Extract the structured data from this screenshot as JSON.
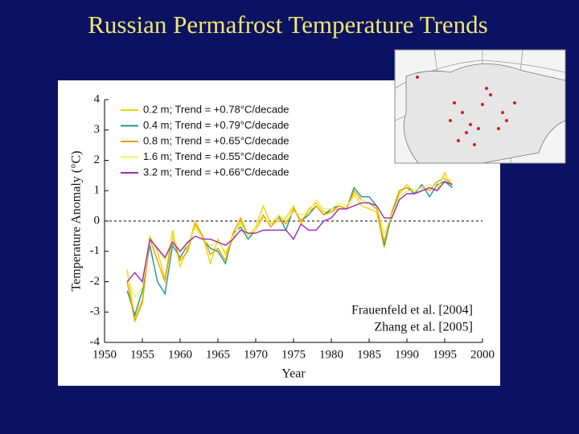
{
  "chart_data": {
    "type": "line",
    "title": "Russian Permafrost Temperature Trends",
    "x_label": "Year",
    "y_label": "Temperature Anomaly (°C)",
    "annotations": [
      "Frauenfeld et al. [2004]",
      "Zhang et al. [2005]"
    ],
    "x": [
      1953,
      1954,
      1955,
      1956,
      1957,
      1958,
      1959,
      1960,
      1961,
      1962,
      1963,
      1964,
      1965,
      1966,
      1967,
      1968,
      1969,
      1970,
      1971,
      1972,
      1973,
      1974,
      1975,
      1976,
      1977,
      1978,
      1979,
      1980,
      1981,
      1982,
      1983,
      1984,
      1985,
      1986,
      1987,
      1988,
      1989,
      1990,
      1991,
      1992,
      1993,
      1994,
      1995,
      1996
    ],
    "series": [
      {
        "name": "0.2 m; Trend = +0.78°C/decade",
        "color": "#e8d800",
        "values": [
          -1.6,
          -3.2,
          -2.6,
          -0.5,
          -1.0,
          -1.9,
          -0.3,
          -1.5,
          -0.9,
          0.0,
          -0.5,
          -1.4,
          -0.6,
          -1.1,
          -0.6,
          0.0,
          -0.5,
          -0.2,
          0.5,
          -0.1,
          0.0,
          0.1,
          0.5,
          -0.1,
          0.4,
          0.6,
          0.3,
          0.3,
          0.4,
          0.4,
          0.9,
          0.5,
          0.4,
          0.3,
          -0.9,
          0.3,
          0.9,
          1.2,
          0.9,
          1.0,
          1.1,
          1.0,
          1.6,
          1.1
        ]
      },
      {
        "name": "0.4 m; Trend = +0.79°C/decade",
        "color": "#1a9a8a",
        "values": [
          -2.3,
          -3.1,
          -2.3,
          -0.8,
          -2.0,
          -2.4,
          -0.8,
          -1.2,
          -0.8,
          -0.2,
          -0.6,
          -0.9,
          -1.0,
          -1.4,
          -0.4,
          -0.2,
          -0.6,
          -0.3,
          0.1,
          -0.1,
          0.2,
          -0.3,
          0.4,
          0.0,
          0.2,
          0.5,
          0.2,
          0.4,
          0.5,
          0.4,
          1.1,
          0.8,
          0.8,
          0.5,
          -0.8,
          0.2,
          1.0,
          1.1,
          0.9,
          1.2,
          0.8,
          1.2,
          1.3,
          1.1
        ]
      },
      {
        "name": "0.8 m; Trend = +0.65°C/decade",
        "color": "#f0a000",
        "values": [
          -2.0,
          -3.3,
          -2.7,
          -0.6,
          -1.3,
          -2.0,
          -0.5,
          -1.3,
          -1.0,
          -0.1,
          -0.5,
          -1.1,
          -0.9,
          -1.3,
          -0.4,
          0.1,
          -0.5,
          -0.3,
          0.2,
          -0.2,
          0.1,
          -0.1,
          0.4,
          0.0,
          0.3,
          0.5,
          0.2,
          0.3,
          0.5,
          0.4,
          1.0,
          0.7,
          0.6,
          0.4,
          -0.7,
          0.3,
          1.0,
          1.1,
          1.0,
          1.1,
          1.0,
          1.3,
          1.4,
          1.2
        ]
      },
      {
        "name": "1.6 m; Trend = +0.55°C/decade",
        "color": "#f6ee60",
        "values": [
          -1.8,
          -2.5,
          -2.2,
          -0.6,
          -0.9,
          -1.3,
          -0.5,
          -1.0,
          -0.8,
          -0.2,
          -0.6,
          -0.8,
          -0.7,
          -1.0,
          -0.5,
          -0.1,
          -0.5,
          -0.3,
          0.1,
          -0.1,
          0.2,
          0.0,
          0.3,
          0.2,
          0.3,
          0.7,
          0.4,
          0.4,
          0.6,
          0.5,
          0.8,
          0.7,
          0.6,
          0.5,
          -0.4,
          0.2,
          0.8,
          1.0,
          1.0,
          1.1,
          1.2,
          1.1,
          1.5,
          1.3
        ]
      },
      {
        "name": "3.2 m; Trend = +0.66°C/decade",
        "color": "#9a2ab8",
        "values": [
          -2.0,
          -1.7,
          -2.0,
          -0.6,
          -0.9,
          -1.2,
          -0.7,
          -1.0,
          -0.7,
          -0.5,
          -0.6,
          -0.6,
          -0.7,
          -0.8,
          -0.6,
          -0.3,
          -0.4,
          -0.4,
          -0.3,
          -0.3,
          -0.3,
          -0.3,
          -0.6,
          -0.1,
          -0.3,
          -0.3,
          0.0,
          0.1,
          0.4,
          0.4,
          0.5,
          0.6,
          0.6,
          0.5,
          0.1,
          0.1,
          0.7,
          0.9,
          0.9,
          1.0,
          1.1,
          1.0,
          1.3,
          1.2
        ]
      }
    ],
    "xlim": [
      1950,
      2000
    ],
    "xticks": [
      1950,
      1955,
      1960,
      1965,
      1970,
      1975,
      1980,
      1985,
      1990,
      1995,
      2000
    ],
    "ylim": [
      -4,
      4
    ],
    "yticks": [
      -4,
      -3,
      -2,
      -1,
      0,
      1,
      2,
      3,
      4
    ],
    "reference_line": 0
  }
}
